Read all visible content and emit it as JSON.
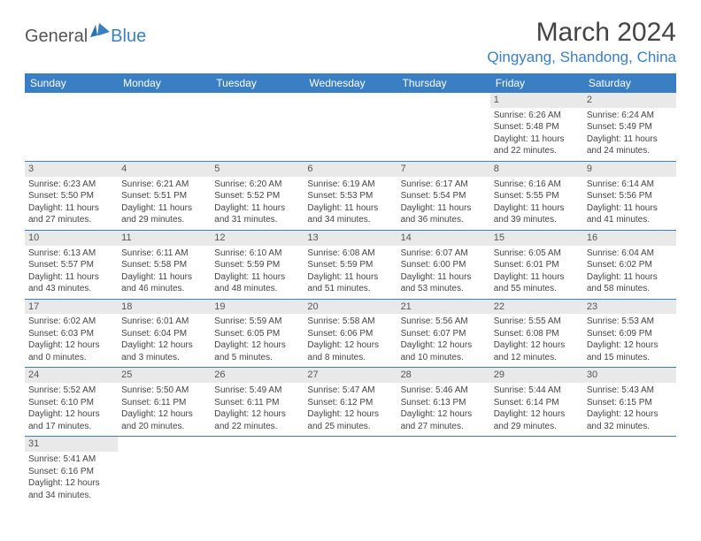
{
  "logo": {
    "general": "General",
    "blue": "Blue"
  },
  "title": "March 2024",
  "location": "Qingyang, Shandong, China",
  "weekdays": [
    "Sunday",
    "Monday",
    "Tuesday",
    "Wednesday",
    "Thursday",
    "Friday",
    "Saturday"
  ],
  "colors": {
    "accent": "#3a7fc4",
    "dayband": "#e9e9e9",
    "text": "#444444",
    "bg": "#ffffff"
  },
  "days": [
    {
      "n": "",
      "sr": "",
      "ss": "",
      "dl": "",
      "empty": true
    },
    {
      "n": "",
      "sr": "",
      "ss": "",
      "dl": "",
      "empty": true
    },
    {
      "n": "",
      "sr": "",
      "ss": "",
      "dl": "",
      "empty": true
    },
    {
      "n": "",
      "sr": "",
      "ss": "",
      "dl": "",
      "empty": true
    },
    {
      "n": "",
      "sr": "",
      "ss": "",
      "dl": "",
      "empty": true
    },
    {
      "n": "1",
      "sr": "Sunrise: 6:26 AM",
      "ss": "Sunset: 5:48 PM",
      "dl": "Daylight: 11 hours and 22 minutes."
    },
    {
      "n": "2",
      "sr": "Sunrise: 6:24 AM",
      "ss": "Sunset: 5:49 PM",
      "dl": "Daylight: 11 hours and 24 minutes."
    },
    {
      "n": "3",
      "sr": "Sunrise: 6:23 AM",
      "ss": "Sunset: 5:50 PM",
      "dl": "Daylight: 11 hours and 27 minutes."
    },
    {
      "n": "4",
      "sr": "Sunrise: 6:21 AM",
      "ss": "Sunset: 5:51 PM",
      "dl": "Daylight: 11 hours and 29 minutes."
    },
    {
      "n": "5",
      "sr": "Sunrise: 6:20 AM",
      "ss": "Sunset: 5:52 PM",
      "dl": "Daylight: 11 hours and 31 minutes."
    },
    {
      "n": "6",
      "sr": "Sunrise: 6:19 AM",
      "ss": "Sunset: 5:53 PM",
      "dl": "Daylight: 11 hours and 34 minutes."
    },
    {
      "n": "7",
      "sr": "Sunrise: 6:17 AM",
      "ss": "Sunset: 5:54 PM",
      "dl": "Daylight: 11 hours and 36 minutes."
    },
    {
      "n": "8",
      "sr": "Sunrise: 6:16 AM",
      "ss": "Sunset: 5:55 PM",
      "dl": "Daylight: 11 hours and 39 minutes."
    },
    {
      "n": "9",
      "sr": "Sunrise: 6:14 AM",
      "ss": "Sunset: 5:56 PM",
      "dl": "Daylight: 11 hours and 41 minutes."
    },
    {
      "n": "10",
      "sr": "Sunrise: 6:13 AM",
      "ss": "Sunset: 5:57 PM",
      "dl": "Daylight: 11 hours and 43 minutes."
    },
    {
      "n": "11",
      "sr": "Sunrise: 6:11 AM",
      "ss": "Sunset: 5:58 PM",
      "dl": "Daylight: 11 hours and 46 minutes."
    },
    {
      "n": "12",
      "sr": "Sunrise: 6:10 AM",
      "ss": "Sunset: 5:59 PM",
      "dl": "Daylight: 11 hours and 48 minutes."
    },
    {
      "n": "13",
      "sr": "Sunrise: 6:08 AM",
      "ss": "Sunset: 5:59 PM",
      "dl": "Daylight: 11 hours and 51 minutes."
    },
    {
      "n": "14",
      "sr": "Sunrise: 6:07 AM",
      "ss": "Sunset: 6:00 PM",
      "dl": "Daylight: 11 hours and 53 minutes."
    },
    {
      "n": "15",
      "sr": "Sunrise: 6:05 AM",
      "ss": "Sunset: 6:01 PM",
      "dl": "Daylight: 11 hours and 55 minutes."
    },
    {
      "n": "16",
      "sr": "Sunrise: 6:04 AM",
      "ss": "Sunset: 6:02 PM",
      "dl": "Daylight: 11 hours and 58 minutes."
    },
    {
      "n": "17",
      "sr": "Sunrise: 6:02 AM",
      "ss": "Sunset: 6:03 PM",
      "dl": "Daylight: 12 hours and 0 minutes."
    },
    {
      "n": "18",
      "sr": "Sunrise: 6:01 AM",
      "ss": "Sunset: 6:04 PM",
      "dl": "Daylight: 12 hours and 3 minutes."
    },
    {
      "n": "19",
      "sr": "Sunrise: 5:59 AM",
      "ss": "Sunset: 6:05 PM",
      "dl": "Daylight: 12 hours and 5 minutes."
    },
    {
      "n": "20",
      "sr": "Sunrise: 5:58 AM",
      "ss": "Sunset: 6:06 PM",
      "dl": "Daylight: 12 hours and 8 minutes."
    },
    {
      "n": "21",
      "sr": "Sunrise: 5:56 AM",
      "ss": "Sunset: 6:07 PM",
      "dl": "Daylight: 12 hours and 10 minutes."
    },
    {
      "n": "22",
      "sr": "Sunrise: 5:55 AM",
      "ss": "Sunset: 6:08 PM",
      "dl": "Daylight: 12 hours and 12 minutes."
    },
    {
      "n": "23",
      "sr": "Sunrise: 5:53 AM",
      "ss": "Sunset: 6:09 PM",
      "dl": "Daylight: 12 hours and 15 minutes."
    },
    {
      "n": "24",
      "sr": "Sunrise: 5:52 AM",
      "ss": "Sunset: 6:10 PM",
      "dl": "Daylight: 12 hours and 17 minutes."
    },
    {
      "n": "25",
      "sr": "Sunrise: 5:50 AM",
      "ss": "Sunset: 6:11 PM",
      "dl": "Daylight: 12 hours and 20 minutes."
    },
    {
      "n": "26",
      "sr": "Sunrise: 5:49 AM",
      "ss": "Sunset: 6:11 PM",
      "dl": "Daylight: 12 hours and 22 minutes."
    },
    {
      "n": "27",
      "sr": "Sunrise: 5:47 AM",
      "ss": "Sunset: 6:12 PM",
      "dl": "Daylight: 12 hours and 25 minutes."
    },
    {
      "n": "28",
      "sr": "Sunrise: 5:46 AM",
      "ss": "Sunset: 6:13 PM",
      "dl": "Daylight: 12 hours and 27 minutes."
    },
    {
      "n": "29",
      "sr": "Sunrise: 5:44 AM",
      "ss": "Sunset: 6:14 PM",
      "dl": "Daylight: 12 hours and 29 minutes."
    },
    {
      "n": "30",
      "sr": "Sunrise: 5:43 AM",
      "ss": "Sunset: 6:15 PM",
      "dl": "Daylight: 12 hours and 32 minutes."
    },
    {
      "n": "31",
      "sr": "Sunrise: 5:41 AM",
      "ss": "Sunset: 6:16 PM",
      "dl": "Daylight: 12 hours and 34 minutes."
    },
    {
      "n": "",
      "sr": "",
      "ss": "",
      "dl": "",
      "empty": true
    },
    {
      "n": "",
      "sr": "",
      "ss": "",
      "dl": "",
      "empty": true
    },
    {
      "n": "",
      "sr": "",
      "ss": "",
      "dl": "",
      "empty": true
    },
    {
      "n": "",
      "sr": "",
      "ss": "",
      "dl": "",
      "empty": true
    },
    {
      "n": "",
      "sr": "",
      "ss": "",
      "dl": "",
      "empty": true
    },
    {
      "n": "",
      "sr": "",
      "ss": "",
      "dl": "",
      "empty": true
    }
  ]
}
